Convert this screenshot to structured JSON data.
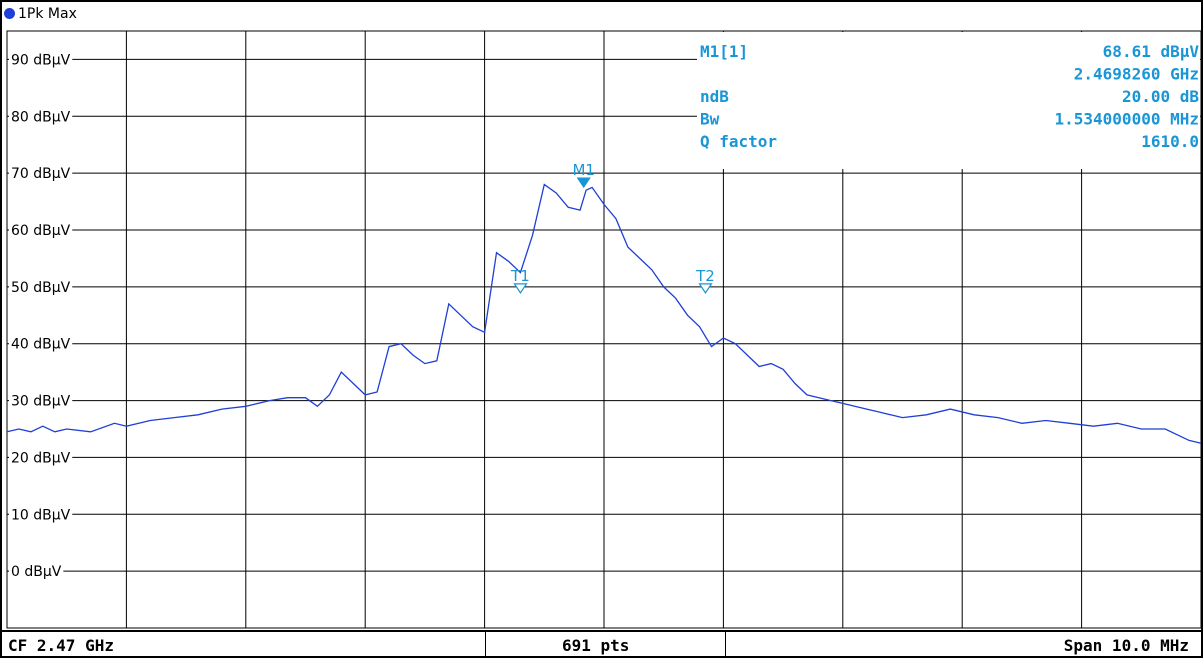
{
  "trace_label": "1Pk Max",
  "colors": {
    "trace": "#1f3fd6",
    "marker": "#1a96d6",
    "grid": "#000000"
  },
  "markers": {
    "m1": {
      "label": "M1"
    },
    "t1": {
      "label": "T1"
    },
    "t2": {
      "label": "T2"
    }
  },
  "readout": [
    {
      "name": "M1[1]",
      "value": "68.61 dBµV"
    },
    {
      "name": "",
      "value": "2.4698260 GHz"
    },
    {
      "name": "ndB",
      "value": "20.00 dB"
    },
    {
      "name": "Bw",
      "value": "1.534000000 MHz"
    },
    {
      "name": "Q factor",
      "value": "1610.0"
    }
  ],
  "footer": {
    "left": "CF 2.47 GHz",
    "center": "691 pts",
    "right": "Span 10.0 MHz"
  },
  "chart_data": {
    "type": "line",
    "xlabel": "",
    "ylabel": "",
    "xlim": [
      2465.0,
      2475.0
    ],
    "ylim": [
      -10,
      95
    ],
    "yticks": [
      0,
      10,
      20,
      30,
      40,
      50,
      60,
      70,
      80,
      90
    ],
    "ytick_labels": [
      "0 dBµV",
      "10 dBµV",
      "20 dBµV",
      "30 dBµV",
      "40 dBµV",
      "50 dBµV",
      "60 dBµV",
      "70 dBµV",
      "80 dBµV",
      "90 dBµV"
    ],
    "grid": true,
    "x_divisions": 10,
    "markers": [
      {
        "label": "M1",
        "x": 2469.83,
        "y": 68.6
      },
      {
        "label": "T1",
        "x": 2469.3,
        "y": 50
      },
      {
        "label": "T2",
        "x": 2470.85,
        "y": 50
      }
    ],
    "series": [
      {
        "x": [
          2465.0,
          2465.1,
          2465.2,
          2465.3,
          2465.4,
          2465.5,
          2465.7,
          2465.9,
          2466.0,
          2466.2,
          2466.4,
          2466.6,
          2466.8,
          2467.0,
          2467.2,
          2467.35,
          2467.5,
          2467.6,
          2467.7,
          2467.8,
          2467.9,
          2468.0,
          2468.1,
          2468.2,
          2468.3,
          2468.4,
          2468.5,
          2468.6,
          2468.7,
          2468.8,
          2468.9,
          2469.0,
          2469.1,
          2469.2,
          2469.3,
          2469.4,
          2469.5,
          2469.6,
          2469.7,
          2469.8,
          2469.85,
          2469.9,
          2470.0,
          2470.1,
          2470.2,
          2470.3,
          2470.4,
          2470.5,
          2470.6,
          2470.7,
          2470.8,
          2470.9,
          2471.0,
          2471.1,
          2471.2,
          2471.3,
          2471.4,
          2471.5,
          2471.6,
          2471.7,
          2471.8,
          2471.9,
          2472.0,
          2472.1,
          2472.2,
          2472.3,
          2472.4,
          2472.5,
          2472.7,
          2472.9,
          2473.1,
          2473.3,
          2473.5,
          2473.7,
          2473.9,
          2474.1,
          2474.3,
          2474.5,
          2474.7,
          2474.9,
          2475.0
        ],
        "y": [
          24.5,
          25.0,
          24.5,
          25.5,
          24.5,
          25.0,
          24.5,
          26.0,
          25.5,
          26.5,
          27.0,
          27.5,
          28.5,
          29.0,
          30.0,
          30.5,
          30.5,
          29.0,
          31.0,
          35.0,
          33.0,
          31.0,
          31.5,
          39.5,
          40.0,
          38.0,
          36.5,
          37.0,
          47.0,
          45.0,
          43.0,
          42.0,
          56.0,
          54.5,
          52.5,
          59.0,
          68.0,
          66.5,
          64.0,
          63.5,
          67.0,
          67.5,
          64.5,
          62.0,
          57.0,
          55.0,
          53.0,
          50.0,
          48.0,
          45.0,
          43.0,
          39.5,
          41.0,
          40.0,
          38.0,
          36.0,
          36.5,
          35.5,
          33.0,
          31.0,
          30.5,
          30.0,
          29.5,
          29.0,
          28.5,
          28.0,
          27.5,
          27.0,
          27.5,
          28.5,
          27.5,
          27.0,
          26.0,
          26.5,
          26.0,
          25.5,
          26.0,
          25.0,
          25.0,
          23.0,
          22.5
        ]
      }
    ]
  }
}
